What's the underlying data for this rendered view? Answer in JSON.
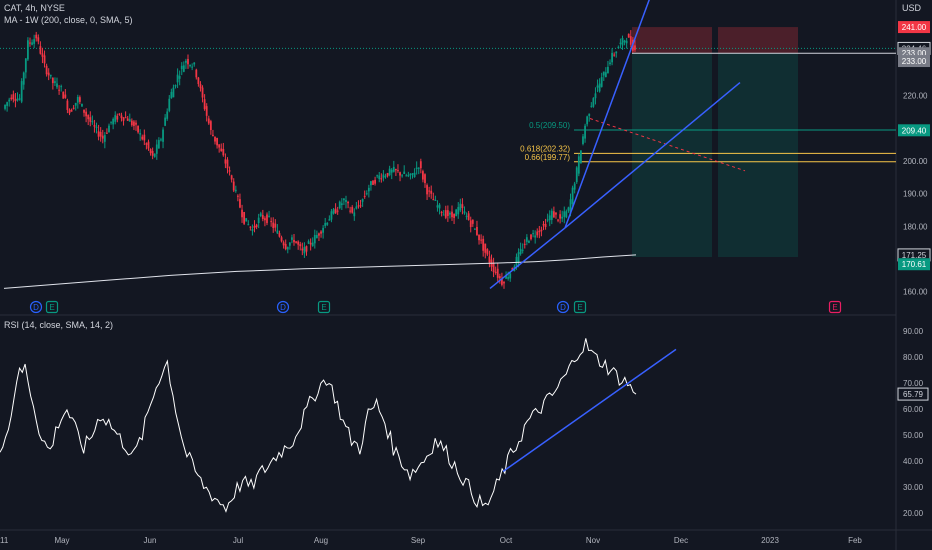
{
  "header": {
    "symbol_line": "CAT, 4h, NYSE",
    "ma_line": "MA - 1W (200, close, 0, SMA, 5)",
    "rsi_line": "RSI (14, close, SMA, 14, 2)",
    "currency": "USD"
  },
  "price_axis": {
    "ticks": [
      "220.00",
      "210.00",
      "200.00",
      "190.00",
      "180.00",
      "160.00"
    ],
    "badges": [
      {
        "text": "241.00",
        "value": 241.0,
        "bg": "#f23645",
        "fg": "#ffffff"
      },
      {
        "text": "234.46",
        "value": 234.46,
        "bg": "#131722",
        "fg": "#d1d4dc",
        "border": "#d1d4dc"
      },
      {
        "text": "233.00",
        "value": 233.0,
        "bg": "#787b86",
        "fg": "#ffffff"
      },
      {
        "text": "233.00",
        "value": 230.6,
        "bg": "#787b86",
        "fg": "#ffffff"
      },
      {
        "text": "209.40",
        "value": 209.4,
        "bg": "#089981",
        "fg": "#ffffff"
      },
      {
        "text": "171.25",
        "value": 171.25,
        "bg": "#131722",
        "fg": "#d1d4dc",
        "border": "#d1d4dc"
      },
      {
        "text": "170.61",
        "value": 168.4,
        "bg": "#089981",
        "fg": "#ffffff"
      }
    ]
  },
  "rsi_axis": {
    "ticks": [
      "90.00",
      "80.00",
      "70.00",
      "60.00",
      "50.00",
      "40.00",
      "30.00",
      "20.00"
    ],
    "badge": {
      "text": "65.79",
      "value": 65.79
    }
  },
  "time_axis": {
    "labels": [
      "11",
      "May",
      "Jun",
      "Jul",
      "Aug",
      "Sep",
      "Oct",
      "Nov",
      "Dec",
      "2023",
      "Feb"
    ]
  },
  "fib_levels": [
    {
      "label": "0.5(209.50)",
      "value": 209.5,
      "color": "#089981"
    },
    {
      "label": "0.618(202.32)",
      "value": 202.32,
      "color": "#f7c548"
    },
    {
      "label": "0.66(199.77)",
      "value": 199.77,
      "color": "#f7c548"
    }
  ],
  "event_markers": [
    {
      "text": "D",
      "kind": "dividend",
      "date_index": 0
    },
    {
      "text": "E",
      "kind": "earnings",
      "date_index": 1
    },
    {
      "text": "D",
      "kind": "dividend",
      "date_index": 2
    },
    {
      "text": "E",
      "kind": "earnings",
      "date_index": 3
    },
    {
      "text": "D",
      "kind": "dividend",
      "date_index": 4
    },
    {
      "text": "E",
      "kind": "earnings",
      "date_index": 5
    },
    {
      "text": "E",
      "kind": "earnings-upcoming",
      "date_index": 6
    }
  ],
  "colors": {
    "up": "#089981",
    "down": "#f23645",
    "trendline": "#3860ff",
    "ma": "#e0e3eb",
    "rsi": "#ffffff",
    "grid": "#1e222d"
  },
  "chart_data": {
    "type": "candlestick",
    "y_range": [
      155,
      245
    ],
    "rsi_range": [
      15,
      92
    ],
    "price_path": [
      216,
      220,
      219,
      236,
      238,
      229,
      224,
      222,
      215,
      219,
      214,
      210,
      207,
      212,
      214,
      213,
      210,
      206,
      201,
      207,
      219,
      226,
      231,
      229,
      219,
      209,
      204,
      198,
      190,
      182,
      179,
      183,
      182,
      178,
      174,
      176,
      172,
      175,
      178,
      182,
      185,
      188,
      184,
      187,
      192,
      195,
      196,
      197,
      196,
      195,
      199,
      191,
      187,
      184,
      183,
      186,
      182,
      178,
      172,
      167,
      163,
      166,
      171,
      176,
      178,
      180,
      184,
      182,
      185,
      197,
      211,
      220,
      225,
      231,
      235,
      238,
      234
    ],
    "ma_path": [
      161,
      161.8,
      162.6,
      163.4,
      164.2,
      165.0,
      165.6,
      166.2,
      166.6,
      167.0,
      167.3,
      167.6,
      167.9,
      168.2,
      168.5,
      168.8,
      169.2,
      169.8,
      170.6,
      171.25
    ],
    "rsi_path": [
      46,
      52,
      72,
      76,
      62,
      48,
      44,
      55,
      60,
      52,
      45,
      50,
      58,
      55,
      50,
      46,
      42,
      50,
      62,
      72,
      78,
      60,
      45,
      38,
      32,
      28,
      25,
      22,
      28,
      32,
      30,
      35,
      38,
      42,
      45,
      48,
      55,
      62,
      68,
      72,
      65,
      55,
      48,
      45,
      58,
      62,
      55,
      45,
      40,
      35,
      38,
      42,
      48,
      45,
      40,
      35,
      30,
      25,
      22,
      28,
      35,
      42,
      48,
      55,
      58,
      62,
      65,
      70,
      75,
      82,
      85,
      80,
      78,
      75,
      72,
      70,
      65.79
    ],
    "trendlines_price": [
      {
        "from": [
          0.0,
          161
        ],
        "to": [
          0.0,
          0.0
        ]
      }
    ],
    "ylabel": "USD"
  }
}
